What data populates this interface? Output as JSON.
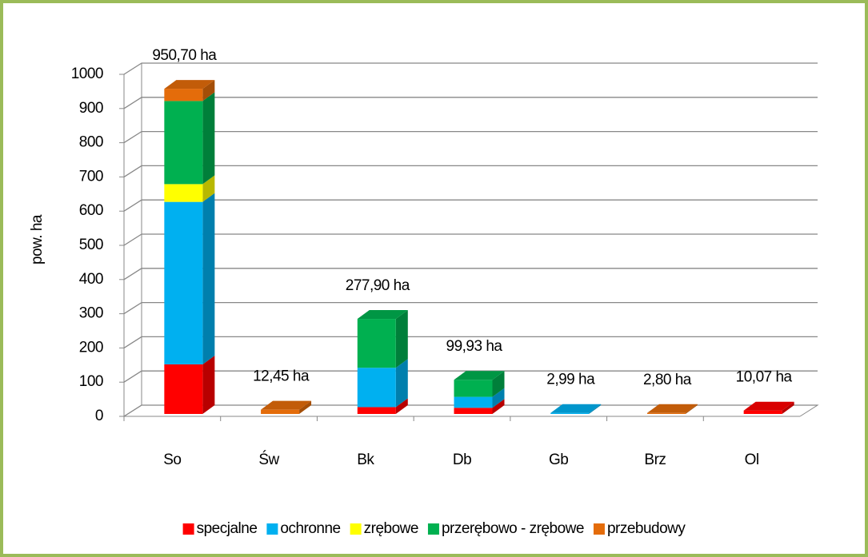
{
  "chart_data": {
    "type": "bar3d_stacked",
    "y_label": "pow. ha",
    "categories": [
      "So",
      "Św",
      "Bk",
      "Db",
      "Gb",
      "Brz",
      "Ol"
    ],
    "series": [
      {
        "name": "specjalne",
        "color": "#ff0000",
        "values": [
          145,
          0,
          20,
          18,
          0,
          0,
          10.07
        ]
      },
      {
        "name": "ochronne",
        "color": "#00b0f0",
        "values": [
          475,
          0,
          115,
          32,
          2.99,
          0,
          0
        ]
      },
      {
        "name": "zrębowe",
        "color": "#ffff00",
        "values": [
          52,
          0,
          0,
          0,
          0,
          0,
          0
        ]
      },
      {
        "name": "przerębowo - zrębowe",
        "color": "#00b050",
        "values": [
          243,
          0,
          142.9,
          49.93,
          0,
          0,
          0
        ]
      },
      {
        "name": "przebudowy",
        "color": "#e46c0a",
        "values": [
          35.7,
          12.45,
          0,
          0,
          0,
          2.8,
          0
        ]
      }
    ],
    "totals": [
      950.7,
      12.45,
      277.9,
      99.93,
      2.99,
      2.8,
      10.07
    ],
    "total_labels": [
      "950,70 ha",
      "12,45 ha",
      "277,90 ha",
      "99,93 ha",
      "2,99 ha",
      "2,80 ha",
      "10,07 ha"
    ],
    "ylim": [
      0,
      1000
    ],
    "yticks": [
      0,
      100,
      200,
      300,
      400,
      500,
      600,
      700,
      800,
      900,
      1000
    ],
    "grid": true,
    "legend": "bottom"
  }
}
